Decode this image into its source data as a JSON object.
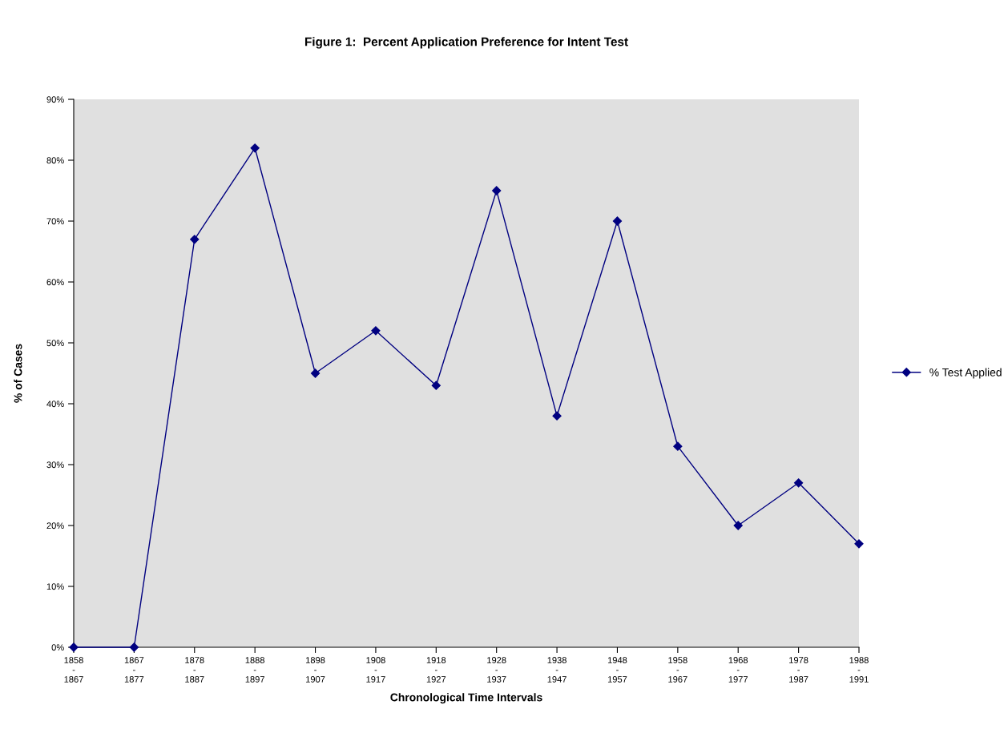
{
  "chart_data": {
    "type": "line",
    "title": "Figure 1:  Percent Application Preference for Intent Test",
    "xlabel": "Chronological Time Intervals",
    "ylabel": "% of Cases",
    "categories": [
      "1858\n-\n1867",
      "1867\n-\n1877",
      "1878\n-\n1887",
      "1888\n-\n1897",
      "1898\n-\n1907",
      "1908\n-\n1917",
      "1918\n-\n1927",
      "1928\n-\n1937",
      "1938\n-\n1947",
      "1948\n-\n1957",
      "1958\n-\n1967",
      "1968\n-\n1977",
      "1978\n-\n1987",
      "1988\n-\n1991"
    ],
    "series": [
      {
        "name": "% Test Applied",
        "color": "#000080",
        "values": [
          0,
          0,
          67,
          82,
          45,
          52,
          43,
          75,
          38,
          70,
          33,
          20,
          27,
          17
        ]
      }
    ],
    "ylim": [
      0,
      90
    ],
    "yticks": [
      {
        "value": 0,
        "label": "0%"
      },
      {
        "value": 10,
        "label": "10%"
      },
      {
        "value": 20,
        "label": "20%"
      },
      {
        "value": 30,
        "label": "30%"
      },
      {
        "value": 40,
        "label": "40%"
      },
      {
        "value": 50,
        "label": "50%"
      },
      {
        "value": 60,
        "label": "60%"
      },
      {
        "value": 70,
        "label": "70%"
      },
      {
        "value": 80,
        "label": "80%"
      },
      {
        "value": 90,
        "label": "90%"
      }
    ],
    "marker": "diamond",
    "line_style": "solid",
    "legend": "right",
    "grid": false
  }
}
